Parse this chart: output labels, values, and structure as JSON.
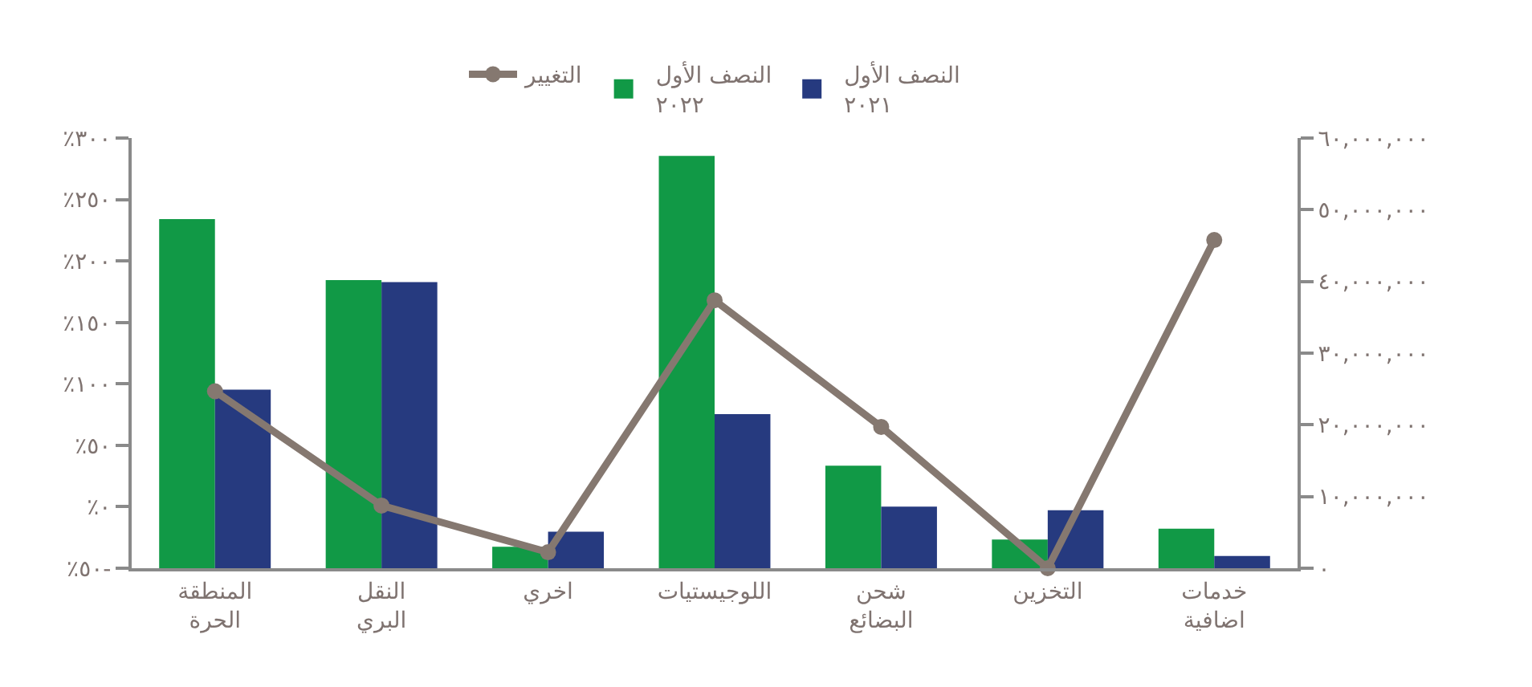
{
  "chart_data": {
    "type": "bar",
    "categories": [
      "المنطقة الحرة",
      "النقل البري",
      "اخري",
      "اللوجيستيات",
      "شحن البضائع",
      "التخزين",
      "خدمات اضافية"
    ],
    "series": [
      {
        "name": "النصف الأول ٢٠٢٢",
        "color": "#119946",
        "axis": "y2",
        "values": [
          48700000,
          40200000,
          3000000,
          57500000,
          14300000,
          4000000,
          5500000
        ]
      },
      {
        "name": "النصف الأول ٢٠٢١",
        "color": "#263a7f",
        "axis": "y2",
        "values": [
          24900000,
          39900000,
          5100000,
          21500000,
          8600000,
          8100000,
          1700000
        ]
      },
      {
        "name": "التغيير",
        "type": "line",
        "color": "#857870",
        "axis": "y",
        "marker": "circle",
        "values": [
          94,
          1,
          -37,
          168,
          65,
          -50,
          217
        ]
      }
    ],
    "ylim": [
      -50,
      300
    ],
    "yticks": [
      {
        "value": -50,
        "label": "٪٥٠-"
      },
      {
        "value": 0,
        "label": "٪٠"
      },
      {
        "value": 50,
        "label": "٪٥٠"
      },
      {
        "value": 100,
        "label": "٪١٠٠"
      },
      {
        "value": 150,
        "label": "٪١٥٠"
      },
      {
        "value": 200,
        "label": "٪٢٠٠"
      },
      {
        "value": 250,
        "label": "٪٢٥٠"
      },
      {
        "value": 300,
        "label": "٪٣٠٠"
      }
    ],
    "y2lim": [
      0,
      60000000
    ],
    "y2ticks": [
      {
        "value": 0,
        "label": "٠"
      },
      {
        "value": 10000000,
        "label": "١٠,٠٠٠,٠٠٠"
      },
      {
        "value": 20000000,
        "label": "٢٠,٠٠٠,٠٠٠"
      },
      {
        "value": 30000000,
        "label": "٣٠,٠٠٠,٠٠٠"
      },
      {
        "value": 40000000,
        "label": "٤٠,٠٠٠,٠٠٠"
      },
      {
        "value": 50000000,
        "label": "٥٠,٠٠٠,٠٠٠"
      },
      {
        "value": 60000000,
        "label": "٦٠,٠٠٠,٠٠٠"
      }
    ],
    "legend": "top"
  }
}
